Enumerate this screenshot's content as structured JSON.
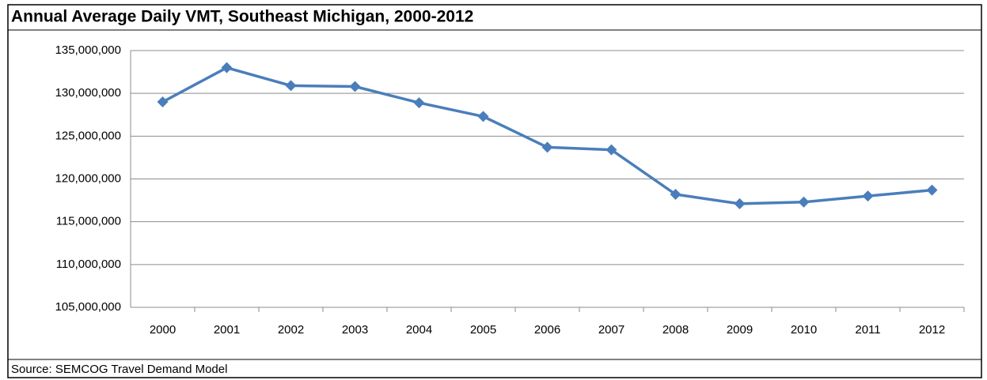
{
  "chart_data": {
    "type": "line",
    "title": "Annual Average Daily VMT, Southeast Michigan, 2000-2012",
    "source": "Source: SEMCOG Travel Demand Model",
    "categories": [
      "2000",
      "2001",
      "2002",
      "2003",
      "2004",
      "2005",
      "2006",
      "2007",
      "2008",
      "2009",
      "2010",
      "2011",
      "2012"
    ],
    "values": [
      129000000,
      133000000,
      130900000,
      130800000,
      128900000,
      127300000,
      123700000,
      123400000,
      118200000,
      117100000,
      117300000,
      118000000,
      118700000
    ],
    "color": "#4a7ebb",
    "ylim": [
      105000000,
      135000000
    ],
    "yticks": [
      {
        "value": 105000000,
        "label": "105,000,000"
      },
      {
        "value": 110000000,
        "label": "110,000,000"
      },
      {
        "value": 115000000,
        "label": "115,000,000"
      },
      {
        "value": 120000000,
        "label": "120,000,000"
      },
      {
        "value": 125000000,
        "label": "125,000,000"
      },
      {
        "value": 130000000,
        "label": "130,000,000"
      },
      {
        "value": 135000000,
        "label": "135,000,000"
      }
    ],
    "grid": true
  }
}
